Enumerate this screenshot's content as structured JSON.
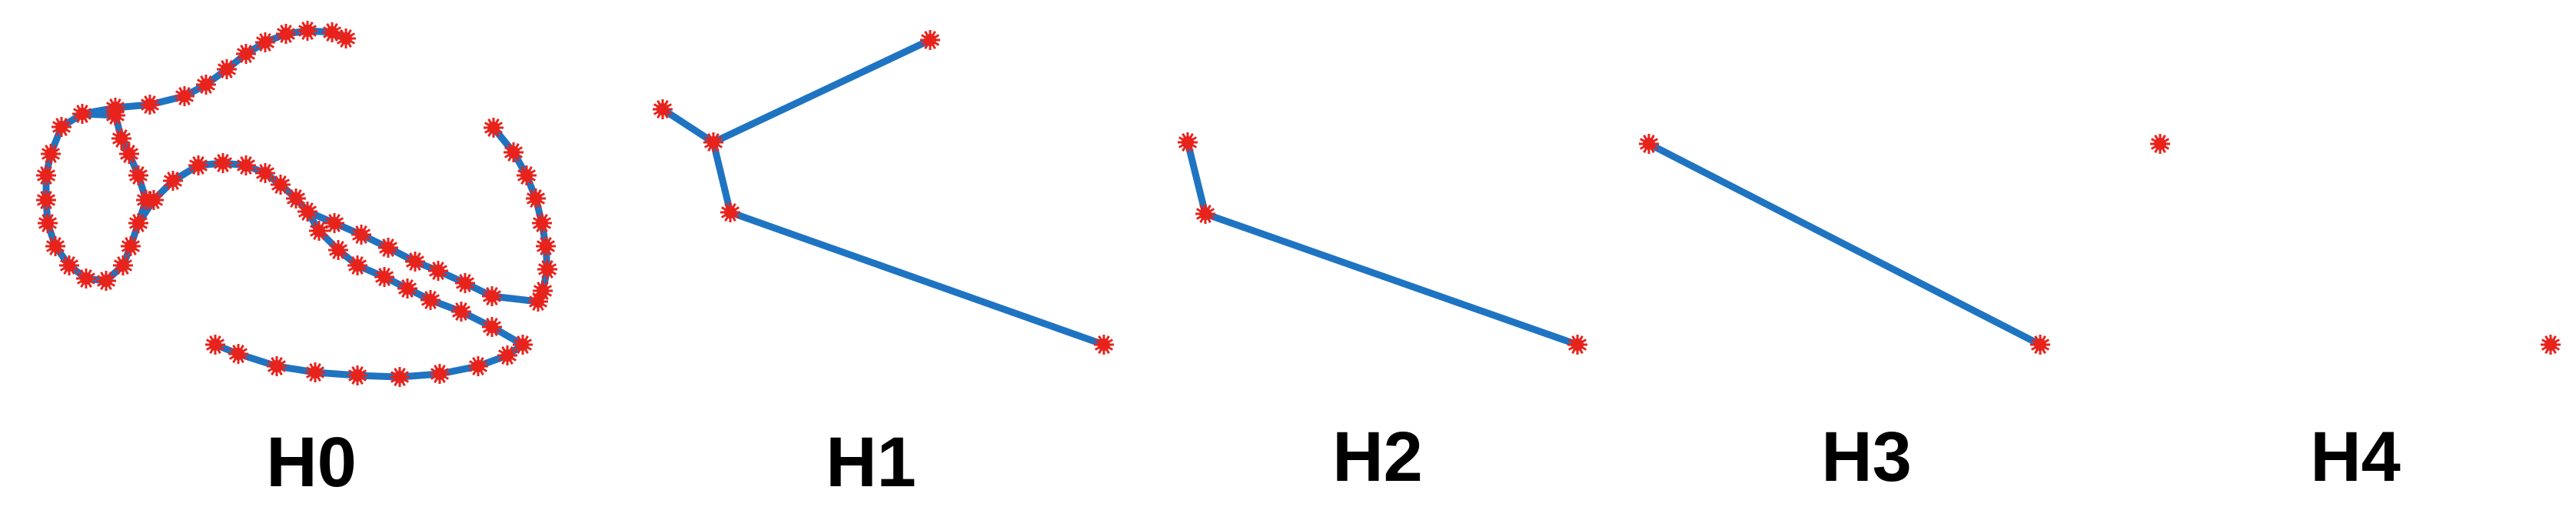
{
  "colors": {
    "edge": "#1f74c2",
    "node": "#e8231c",
    "background": "#ffffff"
  },
  "panels": [
    {
      "id": "H0",
      "label": "H0"
    },
    {
      "id": "H1",
      "label": "H1"
    },
    {
      "id": "H2",
      "label": "H2"
    },
    {
      "id": "H3",
      "label": "H3"
    },
    {
      "id": "H4",
      "label": "H4"
    }
  ]
}
